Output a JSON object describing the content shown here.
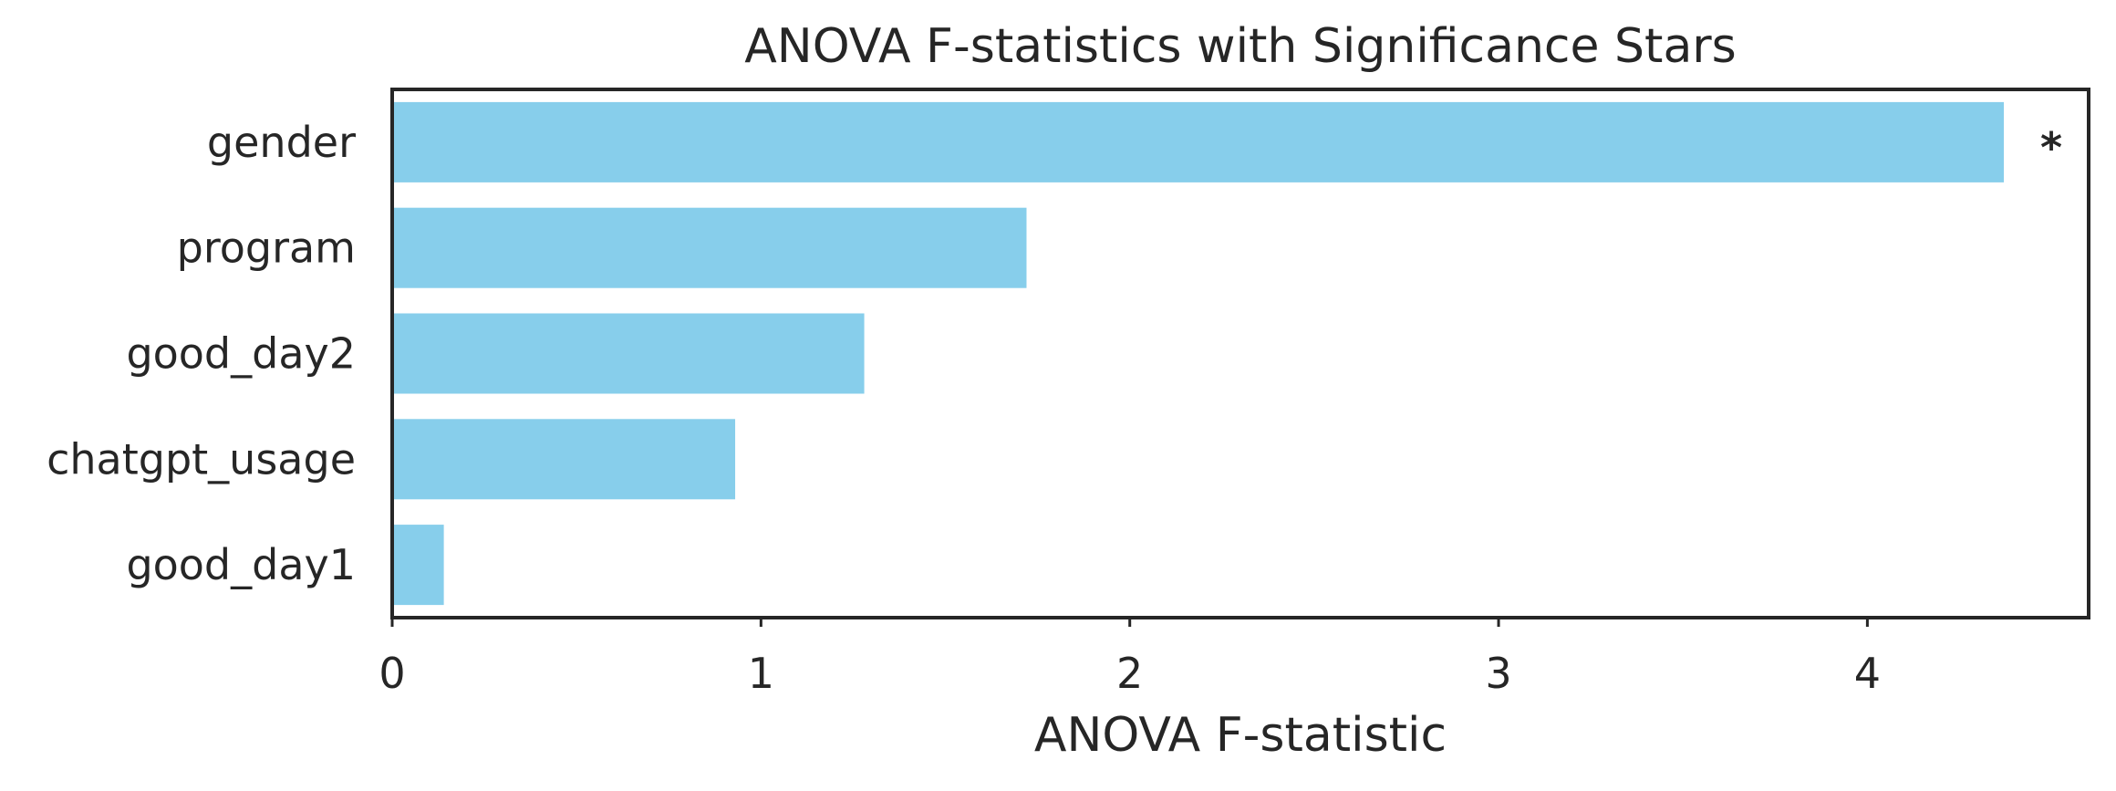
{
  "chart_data": {
    "type": "bar",
    "orientation": "horizontal",
    "title": "ANOVA F-statistics with Significance Stars",
    "xlabel": "ANOVA F-statistic",
    "ylabel": "",
    "categories": [
      "gender",
      "program",
      "good_day2",
      "chatgpt_usage",
      "good_day1"
    ],
    "values": [
      4.37,
      1.72,
      1.28,
      0.93,
      0.14
    ],
    "annotations": [
      "*",
      "",
      "",
      "",
      ""
    ],
    "xlim": [
      0,
      4.6
    ],
    "xticks": [
      0,
      1,
      2,
      3,
      4
    ],
    "xtick_labels": [
      "0",
      "1",
      "2",
      "3",
      "4"
    ],
    "bar_color": "#87CEEB",
    "grid": false,
    "legend": "none"
  }
}
